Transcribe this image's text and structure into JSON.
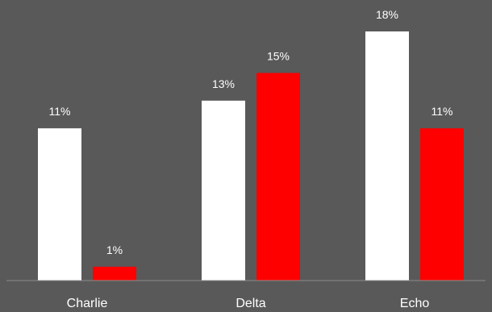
{
  "chart_data": {
    "type": "bar",
    "categories": [
      "Charlie",
      "Delta",
      "Echo"
    ],
    "series": [
      {
        "values": [
          11,
          13,
          18
        ],
        "labels": [
          "11%",
          "13%",
          "18%"
        ],
        "color": "#ffffff"
      },
      {
        "values": [
          1,
          15,
          11
        ],
        "labels": [
          "1%",
          "15%",
          "11%"
        ],
        "color": "#ff0000"
      }
    ],
    "value_suffix": "%",
    "ylim": [
      0,
      18
    ],
    "grid": false,
    "title": "",
    "xlabel": "",
    "ylabel": ""
  },
  "colors": {
    "background": "#595959",
    "axis_line": "#8c8c8c",
    "text": "#ffffff"
  }
}
